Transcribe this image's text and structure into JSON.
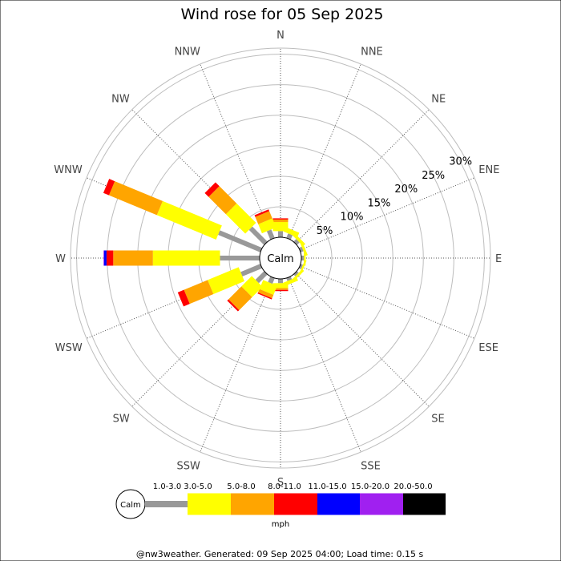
{
  "chart_data": {
    "type": "wind_rose",
    "title": "Wind rose for 05 Sep 2025",
    "directions": [
      "N",
      "NNE",
      "NE",
      "ENE",
      "E",
      "ESE",
      "SE",
      "SSE",
      "S",
      "SSW",
      "SW",
      "WSW",
      "W",
      "WNW",
      "NW",
      "NNW"
    ],
    "ring_labels": [
      "5%",
      "10%",
      "15%",
      "20%",
      "25%",
      "30%"
    ],
    "ring_values": [
      5,
      10,
      15,
      20,
      25,
      30
    ],
    "rmax": 31,
    "calm_label": "Calm",
    "unit": "mph",
    "speed_bins": [
      {
        "label": "1.0-3.0",
        "color": "#999999"
      },
      {
        "label": "3.0-5.0",
        "color": "#ffff00"
      },
      {
        "label": "5.0-8.0",
        "color": "#ffa500"
      },
      {
        "label": "8.0-11.0",
        "color": "#ff0000"
      },
      {
        "label": "11.0-15.0",
        "color": "#0000ff"
      },
      {
        "label": "15.0-20.0",
        "color": "#a020f0"
      },
      {
        "label": "20.0-50.0",
        "color": "#000000"
      }
    ],
    "series": [
      {
        "direction": "N",
        "values": [
          1.0,
          1.5,
          0.4,
          0.2,
          0,
          0,
          0
        ]
      },
      {
        "direction": "NNE",
        "values": [
          0.8,
          0.8,
          0,
          0,
          0,
          0,
          0
        ]
      },
      {
        "direction": "NE",
        "values": [
          0.6,
          0.5,
          0,
          0,
          0,
          0,
          0
        ]
      },
      {
        "direction": "ENE",
        "values": [
          0.5,
          0.4,
          0,
          0,
          0,
          0,
          0
        ]
      },
      {
        "direction": "E",
        "values": [
          0.4,
          0.3,
          0,
          0,
          0,
          0,
          0
        ]
      },
      {
        "direction": "ESE",
        "values": [
          0.4,
          0.3,
          0,
          0,
          0,
          0,
          0
        ]
      },
      {
        "direction": "SE",
        "values": [
          0.4,
          0.4,
          0,
          0,
          0,
          0,
          0
        ]
      },
      {
        "direction": "SSE",
        "values": [
          0.5,
          0.6,
          0,
          0,
          0,
          0,
          0
        ]
      },
      {
        "direction": "S",
        "values": [
          0.7,
          0.8,
          0.3,
          0.2,
          0,
          0,
          0
        ]
      },
      {
        "direction": "SSW",
        "values": [
          1.0,
          1.6,
          0.6,
          0.2,
          0,
          0,
          0
        ]
      },
      {
        "direction": "SW",
        "values": [
          2.0,
          2.4,
          3.0,
          0.3,
          0,
          0,
          0
        ]
      },
      {
        "direction": "WSW",
        "values": [
          3.5,
          5.5,
          4.2,
          1.1,
          0,
          0,
          0
        ]
      },
      {
        "direction": "W",
        "values": [
          6.5,
          11.0,
          6.5,
          1.1,
          0.4,
          0.1,
          0
        ]
      },
      {
        "direction": "WNW",
        "values": [
          7.5,
          10.5,
          8.5,
          1.0,
          0,
          0,
          0
        ]
      },
      {
        "direction": "NW",
        "values": [
          3.5,
          4.5,
          4.0,
          0.9,
          0,
          0,
          0
        ]
      },
      {
        "direction": "NNW",
        "values": [
          1.5,
          1.6,
          1.3,
          0.3,
          0,
          0,
          0
        ]
      }
    ]
  },
  "footer": "@nw3weather. Generated: 09 Sep 2025 04:00; Load time: 0.15 s"
}
